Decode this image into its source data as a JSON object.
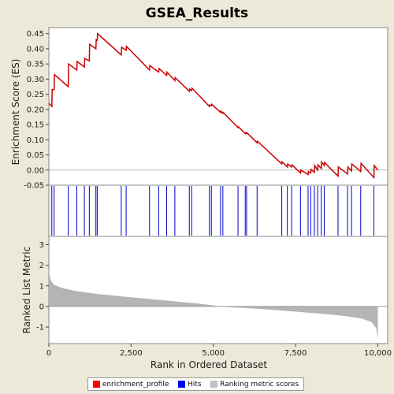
{
  "chart_data": {
    "type": "line",
    "title": "GSEA_Results",
    "xlabel": "Rank in Ordered Dataset",
    "ylabel_top": "Enrichment Score (ES)",
    "ylabel_bottom": "Ranked List Metric",
    "xlim": [
      0,
      10300
    ],
    "x_ticks": [
      0,
      2500,
      5000,
      7500,
      10000
    ],
    "x_tick_labels": [
      "0",
      "2,500",
      "5,000",
      "7,500",
      "10,000"
    ],
    "es_ylim": [
      -0.05,
      0.47
    ],
    "es_ticks": [
      -0.05,
      0.0,
      0.05,
      0.1,
      0.15,
      0.2,
      0.25,
      0.3,
      0.35,
      0.4,
      0.45
    ],
    "es_tick_labels": [
      "-0.05",
      "0.00",
      "0.05",
      "0.10",
      "0.15",
      "0.20",
      "0.25",
      "0.30",
      "0.35",
      "0.40",
      "0.45"
    ],
    "metric_ylim": [
      -1.8,
      3.4
    ],
    "metric_ticks": [
      -1,
      0,
      1,
      2,
      3
    ],
    "metric_tick_labels": [
      "-1",
      "0",
      "1",
      "2",
      "3"
    ],
    "hits": [
      90,
      160,
      590,
      850,
      1080,
      1230,
      1430,
      1470,
      2200,
      2350,
      3060,
      3340,
      3580,
      3830,
      4270,
      4340,
      4880,
      4940,
      5220,
      5290,
      5750,
      5970,
      6010,
      6330,
      7080,
      7250,
      7380,
      7650,
      7880,
      7960,
      8070,
      8170,
      8280,
      8370,
      8790,
      9080,
      9200,
      9480,
      9880
    ],
    "enrichment_profile": {
      "x": [
        0,
        90,
        100,
        160,
        170,
        590,
        600,
        850,
        860,
        1080,
        1090,
        1230,
        1240,
        1430,
        1440,
        1470,
        1480,
        2200,
        2210,
        2350,
        2360,
        3060,
        3070,
        3340,
        3350,
        3580,
        3590,
        3830,
        3840,
        4270,
        4280,
        4340,
        4350,
        4880,
        4890,
        4940,
        4950,
        5220,
        5230,
        5290,
        5300,
        5750,
        5760,
        5970,
        5980,
        6010,
        6020,
        6330,
        6340,
        7080,
        7090,
        7250,
        7260,
        7380,
        7390,
        7650,
        7660,
        7880,
        7890,
        7960,
        7970,
        8070,
        8080,
        8170,
        8180,
        8280,
        8290,
        8370,
        8380,
        8790,
        8800,
        9080,
        9090,
        9200,
        9210,
        9480,
        9490,
        9880,
        9890,
        10000
      ],
      "y": [
        0.22,
        0.21,
        0.265,
        0.265,
        0.315,
        0.275,
        0.35,
        0.33,
        0.358,
        0.34,
        0.368,
        0.36,
        0.415,
        0.4,
        0.43,
        0.428,
        0.45,
        0.38,
        0.405,
        0.395,
        0.408,
        0.33,
        0.345,
        0.323,
        0.335,
        0.312,
        0.323,
        0.295,
        0.305,
        0.26,
        0.267,
        0.262,
        0.27,
        0.21,
        0.215,
        0.212,
        0.217,
        0.19,
        0.195,
        0.187,
        0.19,
        0.14,
        0.143,
        0.12,
        0.123,
        0.12,
        0.123,
        0.09,
        0.095,
        0.02,
        0.027,
        0.01,
        0.02,
        0.01,
        0.017,
        -0.01,
        0.0,
        -0.015,
        -0.005,
        -0.01,
        0.002,
        -0.008,
        0.015,
        0.0,
        0.017,
        0.005,
        0.027,
        0.015,
        0.025,
        -0.02,
        0.01,
        -0.013,
        0.01,
        -0.003,
        0.02,
        -0.005,
        0.022,
        -0.025,
        0.015,
        0.0
      ]
    },
    "ranked_metric": {
      "x": [
        0,
        50,
        150,
        400,
        800,
        1500,
        2500,
        3500,
        4500,
        5000,
        5500,
        6500,
        7500,
        8500,
        9000,
        9500,
        9800,
        9950,
        10000
      ],
      "y": [
        1.75,
        1.3,
        1.05,
        0.9,
        0.75,
        0.6,
        0.45,
        0.3,
        0.15,
        0.05,
        -0.03,
        -0.13,
        -0.25,
        -0.38,
        -0.46,
        -0.58,
        -0.75,
        -1.05,
        -1.6
      ]
    },
    "legend": [
      {
        "label": "enrichment_profile",
        "color": "#ff0000"
      },
      {
        "label": "Hits",
        "color": "#0000ff"
      },
      {
        "label": "Ranking metric scores",
        "color": "#c0c0c0"
      }
    ],
    "colors": {
      "es_line": "#cc0000",
      "hit_line": "#0000cc",
      "metric_fill": "#b4b4b4",
      "plot_bg": "#ffffff"
    }
  }
}
